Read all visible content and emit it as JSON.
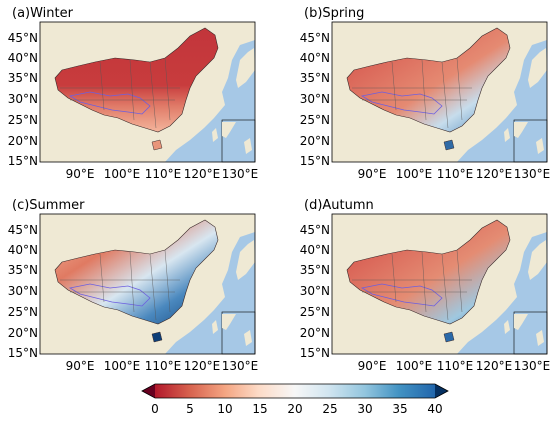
{
  "panels": [
    {
      "label": "(a)Winter",
      "season": "winter"
    },
    {
      "label": "(b)Spring",
      "season": "spring"
    },
    {
      "label": "(c)Summer",
      "season": "summer"
    },
    {
      "label": "(d)Autumn",
      "season": "autumn"
    }
  ],
  "lat_ticks": [
    "45°N",
    "40°N",
    "35°N",
    "30°N",
    "25°N",
    "20°N",
    "15°N"
  ],
  "lon_ticks": [
    "90°E",
    "100°E",
    "110°E",
    "120°E",
    "130°E"
  ],
  "colorbar": {
    "ticks": [
      "0",
      "5",
      "10",
      "15",
      "20",
      "25",
      "30",
      "35",
      "40"
    ],
    "min": 0,
    "max": 40,
    "extend": "both",
    "colors": [
      "#67001f",
      "#b2182b",
      "#d6604d",
      "#f4a582",
      "#fddbc7",
      "#f7f7f7",
      "#d1e5f0",
      "#92c5de",
      "#4393c3",
      "#2166ac",
      "#053061"
    ]
  },
  "map_colors": {
    "ocean": "#a6c8e6",
    "land": "#efe9d4"
  }
}
